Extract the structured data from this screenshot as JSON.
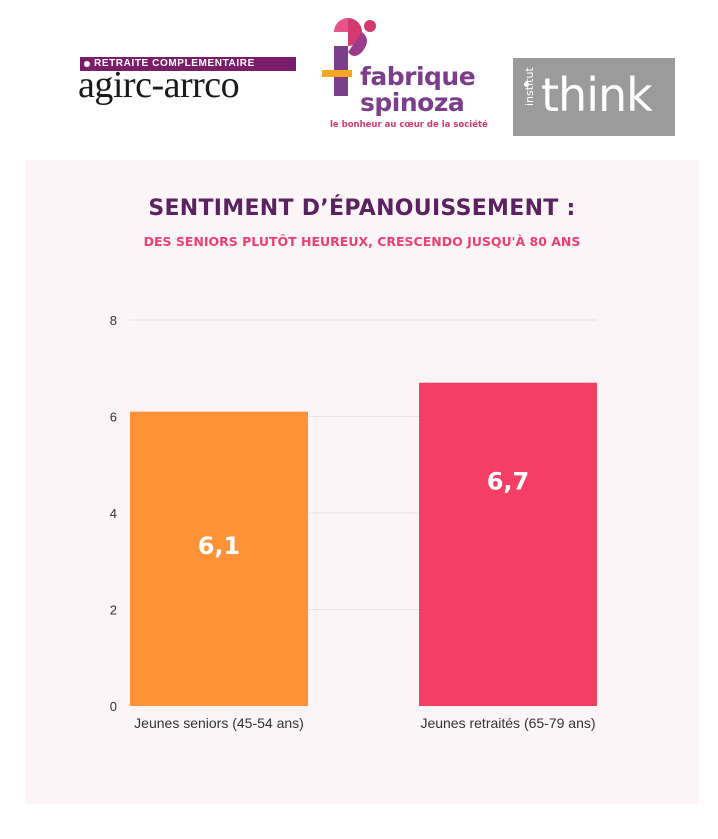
{
  "logos": {
    "agirc_arrco": {
      "tagline": "RETRAITE COMPLEMENTAIRE",
      "name": "agirc-arrco",
      "color": "#7a1e6c"
    },
    "fabrique_spinoza": {
      "line1": "fabrique",
      "line2": "spinoza",
      "tagline": "le bonheur au cœur de la société",
      "colors": [
        "#7a3e8a",
        "#d33a6f",
        "#f5a623"
      ]
    },
    "think": {
      "side_label": "institut",
      "name": "think",
      "background": "#9b9b9b"
    }
  },
  "chart_data": {
    "type": "bar",
    "title": "SENTIMENT D’ÉPANOUISSEMENT :",
    "subtitle": "DES SENIORS PLUTÔT HEUREUX, CRESCENDO JUSQU'À 80 ANS",
    "categories": [
      "Jeunes seniors (45-54 ans)",
      "Jeunes retraités (65-79 ans)"
    ],
    "values": [
      6.1,
      6.7
    ],
    "data_labels": [
      "6,1",
      "6,7"
    ],
    "bar_colors": [
      "#ff9137",
      "#f53e63"
    ],
    "ylim": [
      0,
      8
    ],
    "yticks": [
      0,
      2,
      4,
      6,
      8
    ],
    "grid": true,
    "legend": "none",
    "colors": {
      "title": "#5b2160",
      "subtitle": "#ee3e72",
      "background": "#fbf5f7"
    }
  }
}
